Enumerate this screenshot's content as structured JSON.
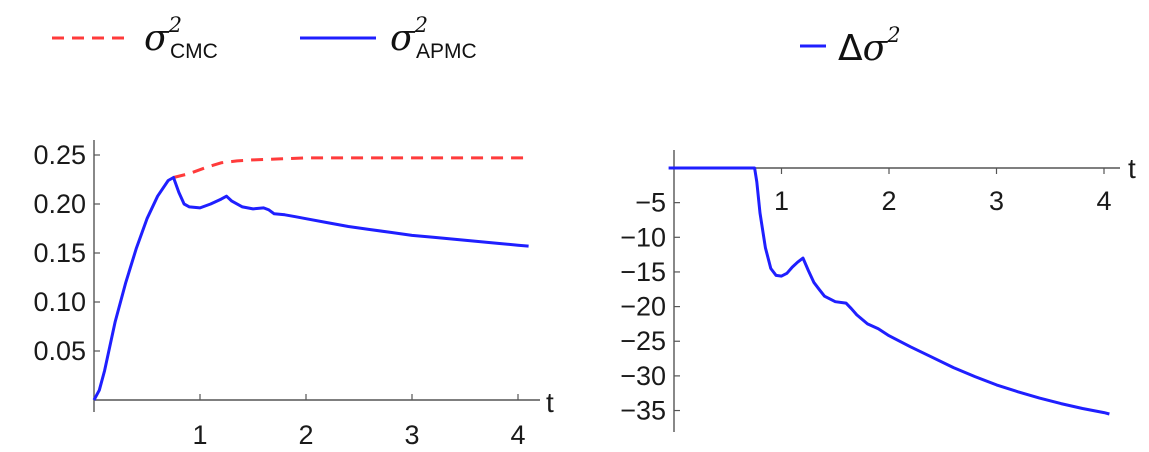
{
  "legend": {
    "left": [
      {
        "symbol": "σ",
        "sup": "2",
        "sub": "CMC",
        "color": "#ff3b3b",
        "dash": true
      },
      {
        "symbol": "σ",
        "sup": "2",
        "sub": "APMC",
        "color": "#1f1fff",
        "dash": false
      }
    ],
    "right": [
      {
        "prefix": "Δ",
        "symbol": "σ",
        "sup": "2",
        "color": "#1f1fff",
        "dash": false
      }
    ]
  },
  "chart_data": [
    {
      "type": "line",
      "xlabel": "t",
      "ylabel": "",
      "xlim": [
        0,
        4
      ],
      "ylim": [
        0,
        0.25
      ],
      "xticks": [
        "1",
        "2",
        "3",
        "4"
      ],
      "yticks": [
        "0.05",
        "0.10",
        "0.15",
        "0.20",
        "0.25"
      ],
      "series": [
        {
          "name": "σ²CMC",
          "color": "#ff3b3b",
          "dashed": true,
          "x": [
            0.75,
            0.9,
            1.05,
            1.2,
            1.35,
            1.5,
            1.75,
            2.0,
            2.5,
            3.0,
            3.5,
            4.1
          ],
          "y": [
            0.227,
            0.231,
            0.237,
            0.242,
            0.244,
            0.245,
            0.246,
            0.247,
            0.247,
            0.247,
            0.247,
            0.247
          ]
        },
        {
          "name": "σ²APMC",
          "color": "#1f1fff",
          "dashed": false,
          "x": [
            0.0,
            0.05,
            0.1,
            0.15,
            0.2,
            0.3,
            0.4,
            0.5,
            0.6,
            0.7,
            0.75,
            0.8,
            0.85,
            0.9,
            1.0,
            1.1,
            1.2,
            1.25,
            1.3,
            1.4,
            1.5,
            1.6,
            1.65,
            1.7,
            1.8,
            1.9,
            2.0,
            2.2,
            2.4,
            2.6,
            2.8,
            3.0,
            3.2,
            3.4,
            3.6,
            3.8,
            4.0,
            4.1
          ],
          "y": [
            0.0,
            0.01,
            0.03,
            0.055,
            0.08,
            0.12,
            0.155,
            0.185,
            0.208,
            0.224,
            0.227,
            0.212,
            0.2,
            0.197,
            0.196,
            0.2,
            0.205,
            0.208,
            0.203,
            0.197,
            0.195,
            0.196,
            0.194,
            0.19,
            0.189,
            0.187,
            0.185,
            0.181,
            0.177,
            0.174,
            0.171,
            0.168,
            0.166,
            0.164,
            0.162,
            0.16,
            0.158,
            0.157
          ]
        }
      ]
    },
    {
      "type": "line",
      "xlabel": "t",
      "ylabel": "",
      "xlim": [
        0,
        4
      ],
      "ylim": [
        -36,
        0
      ],
      "xticks": [
        "1",
        "2",
        "3",
        "4"
      ],
      "yticks": [
        "−5",
        "−10",
        "−15",
        "−20",
        "−25",
        "−30",
        "−35"
      ],
      "series": [
        {
          "name": "Δσ²",
          "color": "#1f1fff",
          "dashed": false,
          "x": [
            -0.05,
            0.0,
            0.3,
            0.6,
            0.75,
            0.77,
            0.8,
            0.85,
            0.9,
            0.95,
            1.0,
            1.05,
            1.1,
            1.15,
            1.2,
            1.25,
            1.3,
            1.35,
            1.4,
            1.5,
            1.6,
            1.65,
            1.7,
            1.8,
            1.9,
            2.0,
            2.2,
            2.4,
            2.6,
            2.8,
            3.0,
            3.2,
            3.4,
            3.6,
            3.8,
            4.0,
            4.05
          ],
          "y": [
            0.0,
            0.0,
            0.0,
            0.0,
            0.0,
            -2.0,
            -6.5,
            -11.5,
            -14.5,
            -15.5,
            -15.6,
            -15.2,
            -14.3,
            -13.6,
            -13.0,
            -14.8,
            -16.5,
            -17.5,
            -18.5,
            -19.3,
            -19.5,
            -20.3,
            -21.2,
            -22.5,
            -23.2,
            -24.2,
            -25.8,
            -27.3,
            -28.8,
            -30.1,
            -31.3,
            -32.3,
            -33.2,
            -34.0,
            -34.7,
            -35.3,
            -35.5
          ]
        }
      ]
    }
  ]
}
